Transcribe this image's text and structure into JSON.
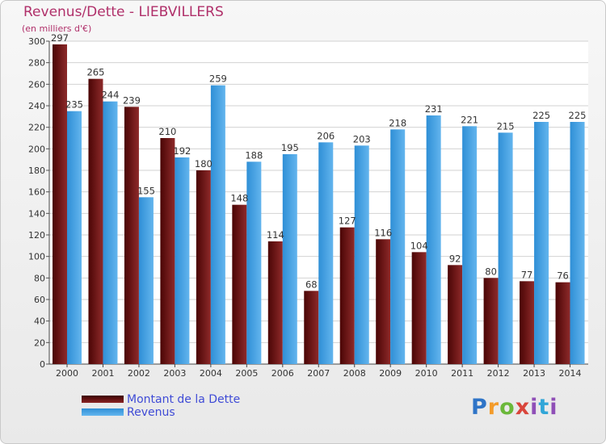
{
  "header": {
    "title": "Revenus/Dette - LIEBVILLERS",
    "subtitle": "(en milliers d'€)"
  },
  "legend": {
    "debt_label": "Montant de la Dette",
    "revenue_label": "Revenus"
  },
  "logo": {
    "text": "Proxiti"
  },
  "colors": {
    "debt": "#7a1e1e",
    "revenue": "#4aa6e6",
    "title": "#b0306a",
    "legend_text": "#3f4bd6"
  },
  "chart_data": {
    "type": "bar",
    "title": "Revenus/Dette - LIEBVILLERS",
    "subtitle": "(en milliers d'€)",
    "categories": [
      "2000",
      "2001",
      "2002",
      "2003",
      "2004",
      "2005",
      "2006",
      "2007",
      "2008",
      "2009",
      "2010",
      "2011",
      "2012",
      "2013",
      "2014"
    ],
    "series": [
      {
        "name": "Montant de la Dette",
        "values": [
          297,
          265,
          239,
          210,
          180,
          148,
          114,
          68,
          127,
          116,
          104,
          92,
          80,
          77,
          76
        ]
      },
      {
        "name": "Revenus",
        "values": [
          235,
          244,
          155,
          192,
          259,
          188,
          195,
          206,
          203,
          218,
          231,
          221,
          215,
          225,
          225
        ]
      }
    ],
    "ylim": [
      0,
      300
    ],
    "yticks": [
      0,
      20,
      40,
      60,
      80,
      100,
      120,
      140,
      160,
      180,
      200,
      220,
      240,
      260,
      280,
      300
    ],
    "grid": true,
    "legend_position": "bottom-left"
  }
}
